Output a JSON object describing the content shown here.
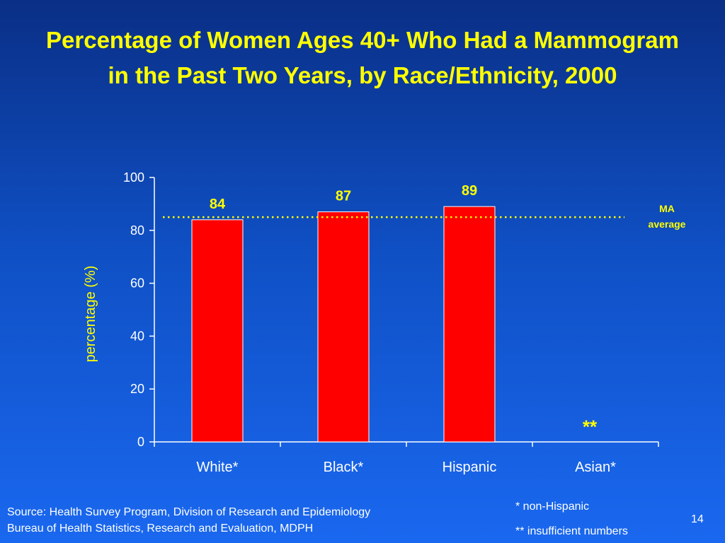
{
  "title": "Percentage of Women Ages 40+ Who Had a Mammogram in the Past Two Years, by Race/Ethnicity, 2000",
  "chart_data": {
    "type": "bar",
    "categories": [
      "White*",
      "Black*",
      "Hispanic",
      "Asian*"
    ],
    "values": [
      84,
      87,
      89,
      null
    ],
    "data_labels": [
      "84",
      "87",
      "89",
      "**"
    ],
    "ylabel": "percentage (%)",
    "ylim": [
      0,
      100
    ],
    "yticks": [
      0,
      20,
      40,
      60,
      80,
      100
    ],
    "reference_line": {
      "value": 85,
      "label": "MA average",
      "style": "dotted"
    },
    "grid": false,
    "legend": "none",
    "colors": {
      "bar": "#ff0000",
      "bar_outline": "#ffffff",
      "axis": "#ffffff",
      "reference_line": "#ffff00",
      "data_label": "#ffff00",
      "tick_label": "#ffffff",
      "axis_label": "#ffff00"
    }
  },
  "footer": {
    "source_line_1": "Source: Health Survey Program, Division of Research and Epidemiology",
    "source_line_2": "Bureau of Health Statistics, Research and Evaluation, MDPH",
    "note_1": "* non-Hispanic",
    "note_2": "** insufficient numbers",
    "slide_number": "14"
  }
}
